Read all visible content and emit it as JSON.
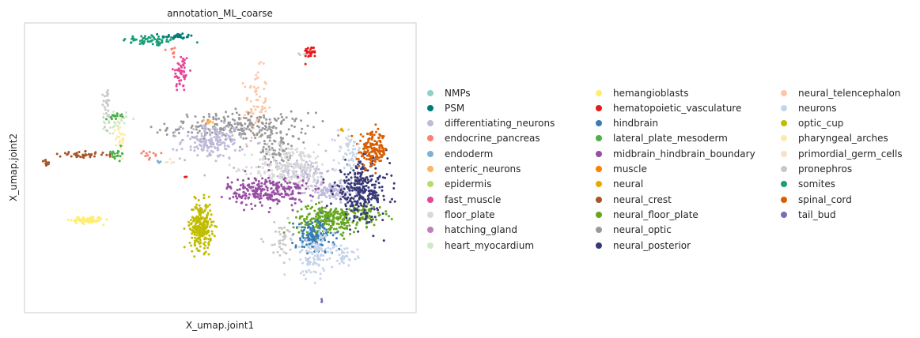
{
  "chart_data": {
    "type": "scatter",
    "title": "annotation_ML_coarse",
    "xlabel": "X_umap.joint1",
    "ylabel": "X_umap.joint2",
    "grid": false,
    "legend_placement": "right",
    "categories": [
      {
        "name": "NMPs",
        "color": "#8dd3c7"
      },
      {
        "name": "PSM",
        "color": "#007b7b"
      },
      {
        "name": "differentiating_neurons",
        "color": "#bebada"
      },
      {
        "name": "endocrine_pancreas",
        "color": "#fb8072"
      },
      {
        "name": "endoderm",
        "color": "#80b1d3"
      },
      {
        "name": "enteric_neurons",
        "color": "#fdb462"
      },
      {
        "name": "epidermis",
        "color": "#b3de69"
      },
      {
        "name": "fast_muscle",
        "color": "#e7479a"
      },
      {
        "name": "floor_plate",
        "color": "#d9d9d9"
      },
      {
        "name": "hatching_gland",
        "color": "#bc80bd"
      },
      {
        "name": "heart_myocardium",
        "color": "#ccebc5"
      },
      {
        "name": "hemangioblasts",
        "color": "#ffed6f"
      },
      {
        "name": "hematopoietic_vasculature",
        "color": "#e41a1c"
      },
      {
        "name": "hindbrain",
        "color": "#377eb8"
      },
      {
        "name": "lateral_plate_mesoderm",
        "color": "#4daf4a"
      },
      {
        "name": "midbrain_hindbrain_boundary",
        "color": "#984ea3"
      },
      {
        "name": "muscle",
        "color": "#ff7f00"
      },
      {
        "name": "neural",
        "color": "#e6ab02"
      },
      {
        "name": "neural_crest",
        "color": "#a6562a"
      },
      {
        "name": "neural_floor_plate",
        "color": "#66a61e"
      },
      {
        "name": "neural_optic",
        "color": "#999999"
      },
      {
        "name": "neural_posterior",
        "color": "#383878"
      },
      {
        "name": "neural_telencephalon",
        "color": "#fdc8a8"
      },
      {
        "name": "neurons",
        "color": "#c6d4ea"
      },
      {
        "name": "optic_cup",
        "color": "#c0bd00"
      },
      {
        "name": "pharyngeal_arches",
        "color": "#fdeaa8"
      },
      {
        "name": "primordial_germ_cells",
        "color": "#f7dfc8"
      },
      {
        "name": "pronephros",
        "color": "#c8c8c8"
      },
      {
        "name": "somites",
        "color": "#1b9e77"
      },
      {
        "name": "spinal_cord",
        "color": "#d95f02"
      },
      {
        "name": "tail_bud",
        "color": "#7570b3"
      }
    ],
    "clusters": [
      {
        "category": "somites",
        "center": [
          0.33,
          0.94
        ],
        "spread": [
          0.04,
          0.01
        ],
        "count": 70
      },
      {
        "category": "PSM",
        "center": [
          0.39,
          0.955
        ],
        "spread": [
          0.02,
          0.005
        ],
        "count": 25
      },
      {
        "category": "endocrine_pancreas",
        "center": [
          0.38,
          0.9
        ],
        "spread": [
          0.005,
          0.015
        ],
        "count": 8
      },
      {
        "category": "fast_muscle",
        "center": [
          0.4,
          0.83
        ],
        "spread": [
          0.01,
          0.035
        ],
        "count": 55
      },
      {
        "category": "hematopoietic_vasculature",
        "center": [
          0.73,
          0.9
        ],
        "spread": [
          0.008,
          0.01
        ],
        "count": 30
      },
      {
        "category": "pronephros",
        "center": [
          0.71,
          0.89
        ],
        "spread": [
          0.004,
          0.004
        ],
        "count": 3
      },
      {
        "category": "neural_telencephalon",
        "center": [
          0.59,
          0.72
        ],
        "spread": [
          0.015,
          0.06
        ],
        "count": 70
      },
      {
        "category": "neural_optic",
        "center": [
          0.55,
          0.64
        ],
        "spread": [
          0.09,
          0.025
        ],
        "count": 260
      },
      {
        "category": "neural_optic",
        "center": [
          0.64,
          0.56
        ],
        "spread": [
          0.02,
          0.03
        ],
        "count": 70
      },
      {
        "category": "differentiating_neurons",
        "center": [
          0.48,
          0.59
        ],
        "spread": [
          0.04,
          0.03
        ],
        "count": 170
      },
      {
        "category": "differentiating_neurons",
        "center": [
          0.78,
          0.42
        ],
        "spread": [
          0.03,
          0.015
        ],
        "count": 110
      },
      {
        "category": "differentiating_neurons",
        "center": [
          0.72,
          0.49
        ],
        "spread": [
          0.03,
          0.02
        ],
        "count": 70
      },
      {
        "category": "enteric_neurons",
        "center": [
          0.47,
          0.66
        ],
        "spread": [
          0.01,
          0.005
        ],
        "count": 10
      },
      {
        "category": "floor_plate",
        "center": [
          0.68,
          0.5
        ],
        "spread": [
          0.05,
          0.04
        ],
        "count": 240
      },
      {
        "category": "pronephros",
        "center": [
          0.21,
          0.72
        ],
        "spread": [
          0.006,
          0.04
        ],
        "count": 30
      },
      {
        "category": "heart_myocardium",
        "center": [
          0.23,
          0.66
        ],
        "spread": [
          0.015,
          0.02
        ],
        "count": 30
      },
      {
        "category": "pharyngeal_arches",
        "center": [
          0.245,
          0.6
        ],
        "spread": [
          0.006,
          0.03
        ],
        "count": 30
      },
      {
        "category": "lateral_plate_mesoderm",
        "center": [
          0.235,
          0.55
        ],
        "spread": [
          0.01,
          0.01
        ],
        "count": 20
      },
      {
        "category": "lateral_plate_mesoderm",
        "center": [
          0.235,
          0.68
        ],
        "spread": [
          0.015,
          0.005
        ],
        "count": 15
      },
      {
        "category": "endocrine_pancreas",
        "center": [
          0.32,
          0.54
        ],
        "spread": [
          0.015,
          0.008
        ],
        "count": 12
      },
      {
        "category": "endoderm",
        "center": [
          0.34,
          0.52
        ],
        "spread": [
          0.004,
          0.004
        ],
        "count": 4
      },
      {
        "category": "primordial_germ_cells",
        "center": [
          0.37,
          0.52
        ],
        "spread": [
          0.008,
          0.004
        ],
        "count": 5
      },
      {
        "category": "neural_crest",
        "center": [
          0.15,
          0.545
        ],
        "spread": [
          0.03,
          0.005
        ],
        "count": 50
      },
      {
        "category": "neural_crest",
        "center": [
          0.055,
          0.52
        ],
        "spread": [
          0.006,
          0.006
        ],
        "count": 12
      },
      {
        "category": "hemangioblasts",
        "center": [
          0.16,
          0.32
        ],
        "spread": [
          0.02,
          0.006
        ],
        "count": 80
      },
      {
        "category": "optic_cup",
        "center": [
          0.45,
          0.3
        ],
        "spread": [
          0.014,
          0.04
        ],
        "count": 260
      },
      {
        "category": "hematopoietic_vasculature",
        "center": [
          0.41,
          0.47
        ],
        "spread": [
          0.002,
          0.002
        ],
        "count": 2
      },
      {
        "category": "midbrain_hindbrain_boundary",
        "center": [
          0.62,
          0.42
        ],
        "spread": [
          0.05,
          0.025
        ],
        "count": 260
      },
      {
        "category": "neural_floor_plate",
        "center": [
          0.77,
          0.32
        ],
        "spread": [
          0.04,
          0.025
        ],
        "count": 220
      },
      {
        "category": "neural_floor_plate",
        "center": [
          0.86,
          0.34
        ],
        "spread": [
          0.03,
          0.02
        ],
        "count": 90
      },
      {
        "category": "hindbrain",
        "center": [
          0.74,
          0.26
        ],
        "spread": [
          0.025,
          0.03
        ],
        "count": 150
      },
      {
        "category": "neurons",
        "center": [
          0.74,
          0.2
        ],
        "spread": [
          0.025,
          0.04
        ],
        "count": 120
      },
      {
        "category": "neurons",
        "center": [
          0.82,
          0.2
        ],
        "spread": [
          0.015,
          0.015
        ],
        "count": 30
      },
      {
        "category": "neural_posterior",
        "center": [
          0.86,
          0.42
        ],
        "spread": [
          0.035,
          0.05
        ],
        "count": 300
      },
      {
        "category": "spinal_cord",
        "center": [
          0.89,
          0.56
        ],
        "spread": [
          0.018,
          0.03
        ],
        "count": 160
      },
      {
        "category": "neurons",
        "center": [
          0.83,
          0.56
        ],
        "spread": [
          0.015,
          0.03
        ],
        "count": 50
      },
      {
        "category": "neural",
        "center": [
          0.81,
          0.63
        ],
        "spread": [
          0.003,
          0.003
        ],
        "count": 3
      },
      {
        "category": "tail_bud",
        "center": [
          0.76,
          0.04
        ],
        "spread": [
          0.002,
          0.004
        ],
        "count": 3
      },
      {
        "category": "pronephros",
        "center": [
          0.655,
          0.25
        ],
        "spread": [
          0.02,
          0.03
        ],
        "count": 40
      }
    ]
  }
}
